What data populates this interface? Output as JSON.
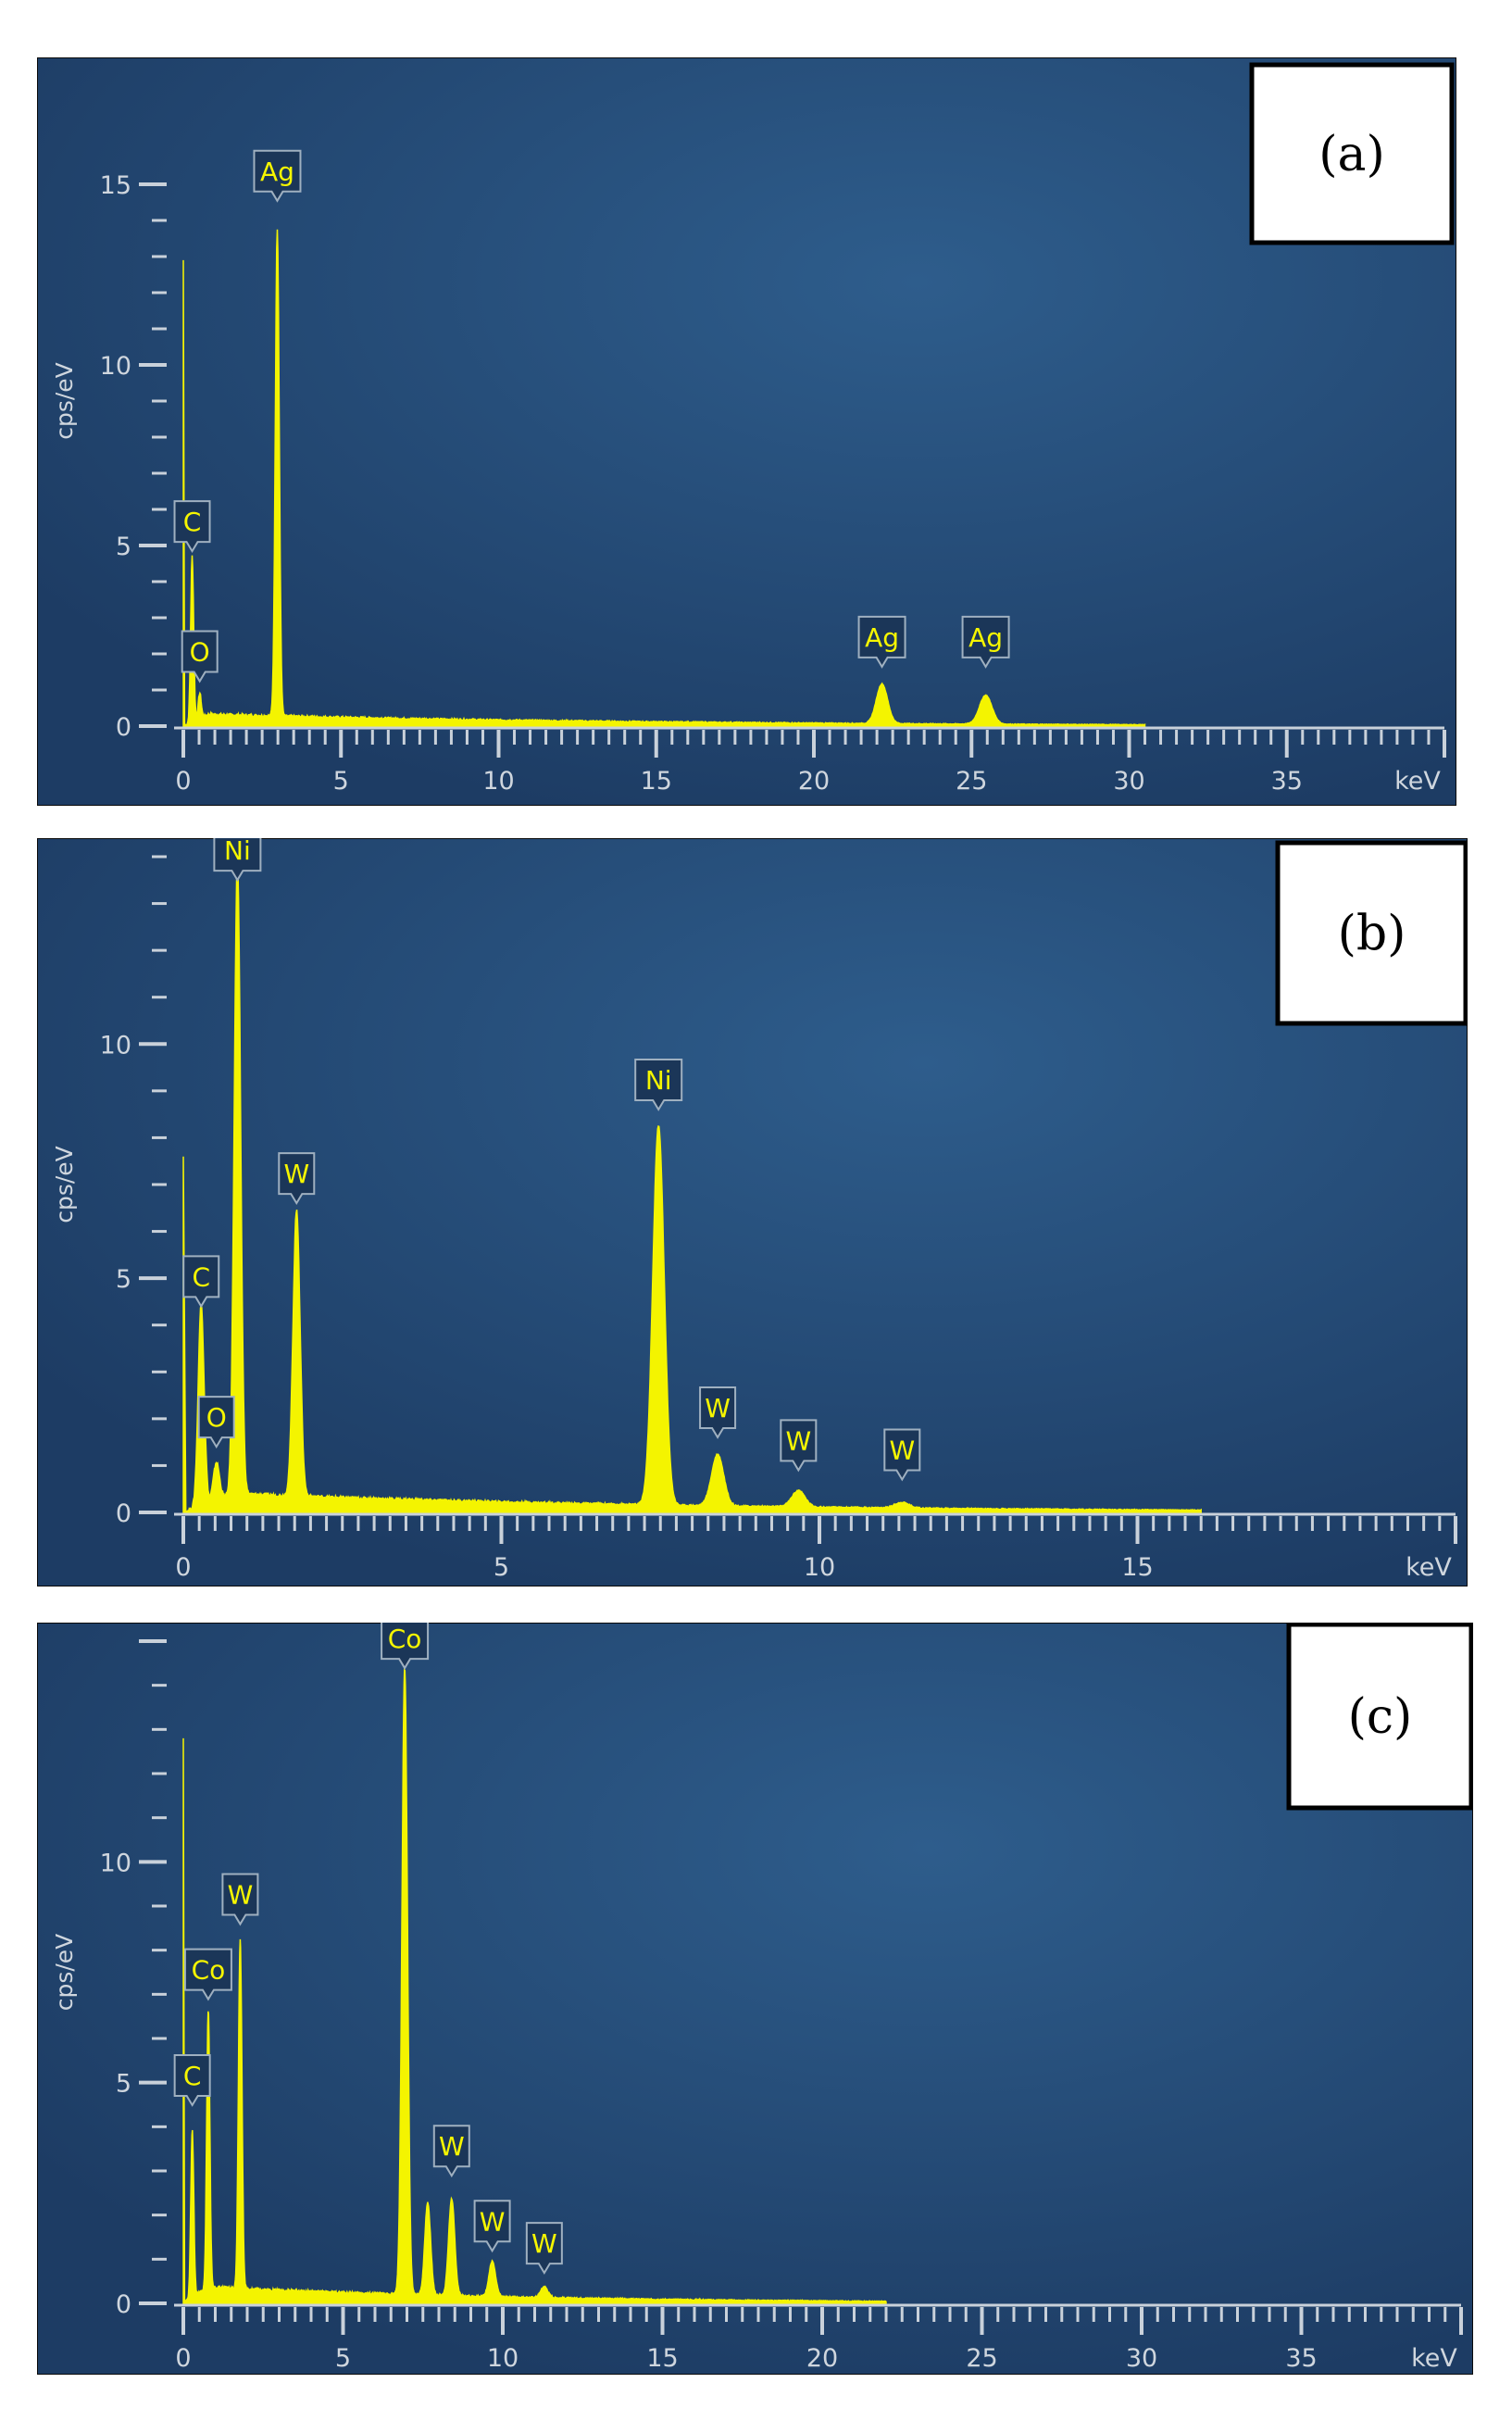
{
  "colors": {
    "background_top": "#1d3c64",
    "background_glow": "#2e5d8c",
    "spectrum": "#f4f400",
    "axis": "#c9d1da",
    "label_box": "#1b3658",
    "label_box_border": "#9fb0c0"
  },
  "chart_data": [
    {
      "type": "line",
      "panel_label": "(a)",
      "xlabel": "keV",
      "ylabel": "cps/eV",
      "xlim": [
        0,
        40
      ],
      "ylim": [
        0,
        18
      ],
      "x_ticks": [
        0,
        5,
        10,
        15,
        20,
        25,
        30,
        35
      ],
      "y_ticks": [
        0,
        5,
        10,
        15
      ],
      "peaks": [
        {
          "element": "C",
          "energy": 0.28,
          "height": 4.6
        },
        {
          "element": "O",
          "energy": 0.52,
          "height": 0.7
        },
        {
          "element": "Ag",
          "energy": 2.98,
          "height": 13.5
        },
        {
          "element": "Ag",
          "energy": 22.16,
          "height": 1.1
        },
        {
          "element": "Ag",
          "energy": 25.45,
          "height": 0.8
        }
      ],
      "labels": [
        {
          "text": "C",
          "energy": 0.28,
          "y": 5.1
        },
        {
          "text": "O",
          "energy": 0.52,
          "y": 1.5
        },
        {
          "text": "Ag",
          "energy": 2.98,
          "y": 14.8
        },
        {
          "text": "Ag",
          "energy": 22.16,
          "y": 1.9
        },
        {
          "text": "Ag",
          "energy": 25.45,
          "y": 1.9
        }
      ],
      "spike_at_zero": 12.9,
      "background_level": 0.35,
      "background_end": 30.5
    },
    {
      "type": "line",
      "panel_label": "(b)",
      "xlabel": "keV",
      "ylabel": "cps/eV",
      "xlim": [
        0,
        20
      ],
      "ylim": [
        0,
        14
      ],
      "x_ticks": [
        0,
        5,
        10,
        15
      ],
      "y_ticks": [
        0,
        5,
        10
      ],
      "peaks": [
        {
          "element": "C",
          "energy": 0.28,
          "height": 4.3
        },
        {
          "element": "O",
          "energy": 0.52,
          "height": 0.8
        },
        {
          "element": "Ni",
          "energy": 0.85,
          "height": 13.5
        },
        {
          "element": "W",
          "energy": 1.78,
          "height": 6.1
        },
        {
          "element": "Ni",
          "energy": 7.47,
          "height": 8.1
        },
        {
          "element": "W",
          "energy": 8.4,
          "height": 1.1
        },
        {
          "element": "W",
          "energy": 9.67,
          "height": 0.35
        },
        {
          "element": "W",
          "energy": 11.3,
          "height": 0.12
        }
      ],
      "labels": [
        {
          "text": "Ni",
          "energy": 0.85,
          "y": 13.7
        },
        {
          "text": "W",
          "energy": 1.78,
          "y": 6.8
        },
        {
          "text": "C",
          "energy": 0.28,
          "y": 4.6
        },
        {
          "text": "O",
          "energy": 0.52,
          "y": 1.6
        },
        {
          "text": "Ni",
          "energy": 7.47,
          "y": 8.8
        },
        {
          "text": "W",
          "energy": 8.4,
          "y": 1.8
        },
        {
          "text": "W",
          "energy": 9.67,
          "y": 1.1
        },
        {
          "text": "W",
          "energy": 11.3,
          "y": 0.9
        }
      ],
      "spike_at_zero": 7.6,
      "background_level": 0.45,
      "background_end": 16.0
    },
    {
      "type": "line",
      "panel_label": "(c)",
      "xlabel": "keV",
      "ylabel": "cps/eV",
      "xlim": [
        0,
        40
      ],
      "ylim": [
        0,
        15
      ],
      "x_ticks": [
        0,
        5,
        10,
        15,
        20,
        25,
        30,
        35
      ],
      "y_ticks": [
        0,
        5,
        10
      ],
      "peaks": [
        {
          "element": "C",
          "energy": 0.28,
          "height": 3.8
        },
        {
          "element": "Co",
          "energy": 0.78,
          "height": 6.3
        },
        {
          "element": "W",
          "energy": 1.78,
          "height": 7.9
        },
        {
          "element": "Co",
          "energy": 6.93,
          "height": 14.2
        },
        {
          "element": "Co",
          "energy": 7.65,
          "height": 2.1
        },
        {
          "element": "W",
          "energy": 8.4,
          "height": 2.2
        },
        {
          "element": "W",
          "energy": 9.67,
          "height": 0.8
        },
        {
          "element": "W",
          "energy": 11.3,
          "height": 0.25
        }
      ],
      "labels": [
        {
          "text": "Co",
          "energy": 6.93,
          "y": 14.6
        },
        {
          "text": "W",
          "energy": 1.78,
          "y": 8.8
        },
        {
          "text": "Co",
          "energy": 0.78,
          "y": 7.1
        },
        {
          "text": "C",
          "energy": 0.28,
          "y": 4.7
        },
        {
          "text": "W",
          "energy": 8.4,
          "y": 3.1
        },
        {
          "text": "W",
          "energy": 9.67,
          "y": 1.4
        },
        {
          "text": "W",
          "energy": 11.3,
          "y": 0.9
        }
      ],
      "spike_at_zero": 12.8,
      "background_level": 0.4,
      "background_end": 22.0
    }
  ]
}
